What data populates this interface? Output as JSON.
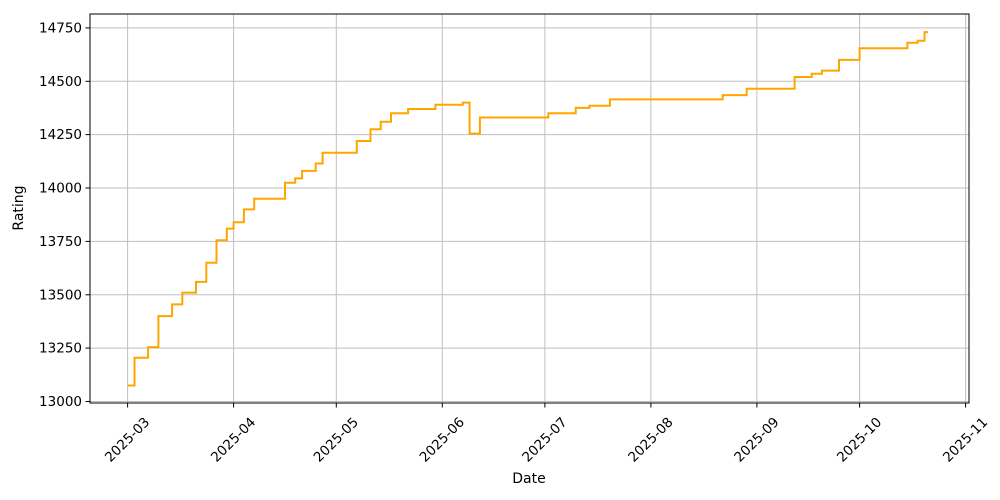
{
  "figure": {
    "background_color": "#ffffff",
    "grid_color": "#bfbfbf",
    "axis_color": "#000000"
  },
  "chart_data": {
    "type": "line",
    "step": "post",
    "series_name": "Rating",
    "line_color": "#ffa500",
    "title": "",
    "xlabel": "Date",
    "ylabel": "Rating",
    "grid": true,
    "legend": false,
    "x": [
      "2025-03-01",
      "2025-03-03",
      "2025-03-07",
      "2025-03-10",
      "2025-03-14",
      "2025-03-17",
      "2025-03-21",
      "2025-03-24",
      "2025-03-27",
      "2025-03-30",
      "2025-04-01",
      "2025-04-04",
      "2025-04-07",
      "2025-04-16",
      "2025-04-19",
      "2025-04-21",
      "2025-04-25",
      "2025-04-27",
      "2025-05-07",
      "2025-05-11",
      "2025-05-14",
      "2025-05-17",
      "2025-05-22",
      "2025-05-30",
      "2025-06-07",
      "2025-06-09",
      "2025-06-12",
      "2025-07-02",
      "2025-07-10",
      "2025-07-14",
      "2025-07-20",
      "2025-08-22",
      "2025-08-29",
      "2025-09-12",
      "2025-09-17",
      "2025-09-20",
      "2025-09-25",
      "2025-10-01",
      "2025-10-15",
      "2025-10-18",
      "2025-10-20",
      "2025-10-21"
    ],
    "values": [
      13075,
      13205,
      13255,
      13400,
      13455,
      13510,
      13560,
      13650,
      13755,
      13810,
      13840,
      13900,
      13950,
      14025,
      14045,
      14080,
      14115,
      14165,
      14220,
      14275,
      14310,
      14350,
      14370,
      14390,
      14400,
      14255,
      14330,
      14350,
      14375,
      14385,
      14415,
      14435,
      14465,
      14520,
      14535,
      14550,
      14600,
      14655,
      14680,
      14690,
      14730,
      14730
    ],
    "xticks": [
      "2025-03",
      "2025-04",
      "2025-05",
      "2025-06",
      "2025-07",
      "2025-08",
      "2025-09",
      "2025-10",
      "2025-11"
    ],
    "yticks": [
      13000,
      13250,
      13500,
      13750,
      14000,
      14250,
      14500,
      14750
    ],
    "xlim": [
      "2025-02-18",
      "2025-11-02"
    ],
    "ylim": [
      12993,
      14815
    ]
  }
}
